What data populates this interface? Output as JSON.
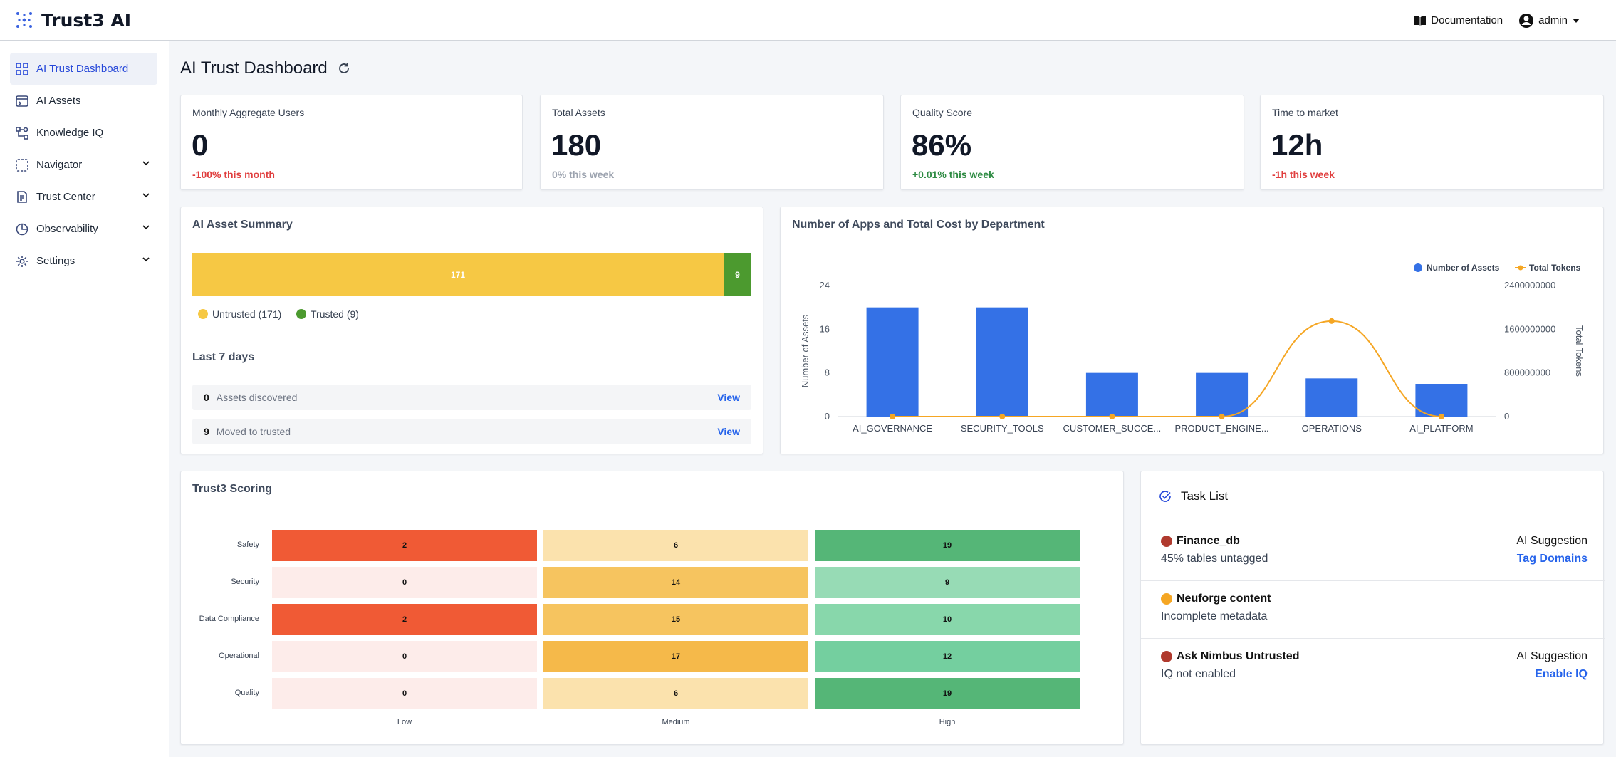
{
  "app": {
    "name": "Trust3 AI"
  },
  "topbar": {
    "documentation": "Documentation",
    "user": "admin"
  },
  "sidebar": {
    "items": [
      {
        "label": "AI Trust Dashboard",
        "icon": "grid-icon",
        "active": true
      },
      {
        "label": "AI Assets",
        "icon": "assets-icon"
      },
      {
        "label": "Knowledge IQ",
        "icon": "knowledge-icon"
      },
      {
        "label": "Navigator",
        "icon": "navigator-icon",
        "expandable": true
      },
      {
        "label": "Trust Center",
        "icon": "trust-center-icon",
        "expandable": true
      },
      {
        "label": "Observability",
        "icon": "pie-icon",
        "expandable": true
      },
      {
        "label": "Settings",
        "icon": "gear-icon",
        "expandable": true
      }
    ]
  },
  "page": {
    "title": "AI Trust Dashboard"
  },
  "kpis": [
    {
      "label": "Monthly Aggregate Users",
      "value": "0",
      "delta": "-100% this month",
      "tone": "neg"
    },
    {
      "label": "Total Assets",
      "value": "180",
      "delta": "0% this week",
      "tone": "neu"
    },
    {
      "label": "Quality Score",
      "value": "86%",
      "delta": "+0.01% this week",
      "tone": "pos"
    },
    {
      "label": "Time to market",
      "value": "12h",
      "delta": "-1h this week",
      "tone": "neg"
    }
  ],
  "asset_summary": {
    "title": "AI Asset Summary",
    "untrusted": 171,
    "trusted": 9,
    "untrusted_label": "Untrusted (171)",
    "trusted_label": "Trusted (9)",
    "last7_title": "Last 7 days",
    "rows": [
      {
        "count": "0",
        "text": "Assets discovered",
        "action": "View"
      },
      {
        "count": "9",
        "text": "Moved to trusted",
        "action": "View"
      }
    ]
  },
  "colors": {
    "blue": "#3471e6",
    "orange": "#f5a623",
    "untrusted": "#f6c844",
    "trusted": "#4c9a2f"
  },
  "chart_data": {
    "type": "bar",
    "title": "Number of Apps and Total Cost by Department",
    "categories": [
      "AI_GOVERNANCE",
      "SECURITY_TOOLS",
      "CUSTOMER_SUCCE...",
      "PRODUCT_ENGINE...",
      "OPERATIONS",
      "AI_PLATFORM"
    ],
    "series": [
      {
        "name": "Number of Assets",
        "type": "bar",
        "axis": "left",
        "values": [
          20,
          20,
          8,
          8,
          7,
          6
        ]
      },
      {
        "name": "Total Tokens",
        "type": "line",
        "axis": "right",
        "values": [
          0,
          0,
          0,
          0,
          1750000000,
          0
        ]
      }
    ],
    "ylabel": "Number of Assets",
    "y2label": "Total Tokens",
    "ylim": [
      0,
      24
    ],
    "yticks": [
      0,
      8,
      16,
      24
    ],
    "y2lim": [
      0,
      2400000000
    ],
    "y2ticks": [
      "0",
      "800000000",
      "1600000000",
      "2400000000"
    ],
    "legend": "top-right"
  },
  "scoring": {
    "title": "Trust3 Scoring",
    "rows": [
      "Safety",
      "Security",
      "Data Compliance",
      "Operational",
      "Quality"
    ],
    "cols": [
      "Low",
      "Medium",
      "High"
    ],
    "values": [
      [
        2,
        6,
        19
      ],
      [
        0,
        14,
        9
      ],
      [
        2,
        15,
        10
      ],
      [
        0,
        17,
        12
      ],
      [
        0,
        6,
        19
      ]
    ]
  },
  "tasks": {
    "title": "Task List",
    "items": [
      {
        "name": "Finance_db",
        "desc": "45% tables untagged",
        "status": "#b03a2e",
        "suggestion": "AI Suggestion",
        "action": "Tag Domains"
      },
      {
        "name": "Neuforge content",
        "desc": "Incomplete metadata",
        "status": "#f5a623",
        "suggestion": "",
        "action": ""
      },
      {
        "name": "Ask Nimbus Untrusted",
        "desc": "IQ not enabled",
        "status": "#b03a2e",
        "suggestion": "AI Suggestion",
        "action": "Enable IQ"
      }
    ]
  }
}
